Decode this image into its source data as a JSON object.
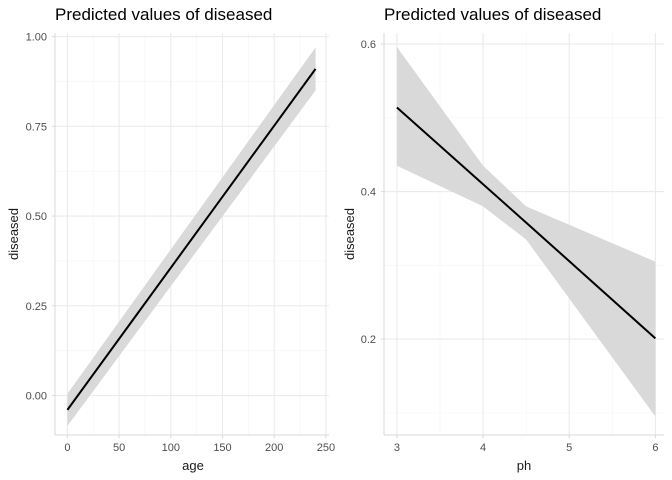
{
  "colors": {
    "line": "#000000",
    "ribbon": "#d9d9d9",
    "grid": "#ebebeb",
    "text": "#4d4d4d"
  },
  "chart_data": [
    {
      "type": "line",
      "title": "Predicted values of diseased",
      "xlabel": "age",
      "ylabel": "diseased",
      "xlim": [
        -12,
        253
      ],
      "ylim": [
        -0.11,
        1.01
      ],
      "x_ticks": [
        0,
        50,
        100,
        150,
        200,
        250
      ],
      "x_tick_labels": [
        "0",
        "50",
        "100",
        "150",
        "200",
        "250"
      ],
      "y_ticks": [
        0.0,
        0.25,
        0.5,
        0.75,
        1.0
      ],
      "y_tick_labels": [
        "0.00",
        "0.25",
        "0.50",
        "0.75",
        "1.00"
      ],
      "grid": true,
      "series": [
        {
          "x": [
            0,
            240
          ],
          "y": [
            -0.04,
            0.91
          ],
          "ci_low": [
            -0.085,
            0.85
          ],
          "ci_high": [
            0.005,
            0.97
          ]
        }
      ]
    },
    {
      "type": "line",
      "title": "Predicted values of diseased",
      "xlabel": "ph",
      "ylabel": "diseased",
      "xlim": [
        2.85,
        6.1
      ],
      "ylim": [
        0.07,
        0.615
      ],
      "x_ticks": [
        3,
        4,
        5,
        6
      ],
      "x_tick_labels": [
        "3",
        "4",
        "5",
        "6"
      ],
      "y_ticks": [
        0.2,
        0.4,
        0.6
      ],
      "y_tick_labels": [
        "0.2",
        "0.4",
        "0.6"
      ],
      "grid": true,
      "series": [
        {
          "x": [
            3,
            4,
            4.5,
            6
          ],
          "y": [
            0.514,
            0.41,
            0.358,
            0.201
          ],
          "ci_low": [
            0.435,
            0.38,
            0.335,
            0.095
          ],
          "ci_high": [
            0.596,
            0.435,
            0.38,
            0.305
          ]
        }
      ]
    }
  ]
}
